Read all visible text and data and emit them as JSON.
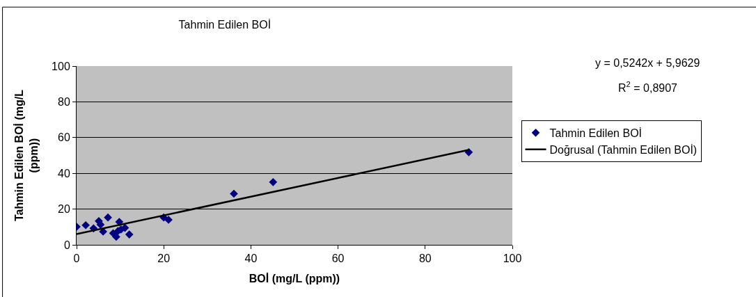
{
  "chart_data": {
    "type": "scatter",
    "title": "Tahmin Edilen BOİ",
    "xlabel": "BOİ (mg/L (ppm))",
    "ylabel": "Tahmin Edilen BOİ (mg/L (ppm))",
    "xlim": [
      0,
      100
    ],
    "xticks": [
      0,
      20,
      40,
      60,
      80,
      100
    ],
    "ylim": [
      0,
      100
    ],
    "yticks": [
      0,
      20,
      40,
      60,
      80,
      100
    ],
    "grid": "y",
    "legend": "right",
    "marker": "diamond",
    "annotations": [
      "y = 0,5242x + 5,9629",
      "R$^{2}$ = 0,8907"
    ],
    "series": [
      {
        "name": "Tahmin Edilen BOİ",
        "color": "#000080",
        "x": [
          0,
          2.1,
          3.9,
          5.1,
          5.5,
          6.1,
          7.2,
          8.4,
          9.1,
          9.5,
          9.8,
          10.2,
          11.1,
          12.1,
          20,
          21.1,
          36.1,
          45.1,
          90
        ],
        "values": [
          10.1,
          11,
          9.2,
          13.3,
          11.3,
          7.4,
          15.3,
          6.5,
          4.5,
          7.7,
          12.8,
          8.6,
          9.5,
          5.8,
          15.3,
          14,
          28.6,
          35.1,
          51.8
        ]
      },
      {
        "name": "Doğrusal (Tahmin Edilen BOİ)",
        "type": "line",
        "color": "#000000",
        "line_style": "solid",
        "marker": "none",
        "x": [
          0,
          90
        ],
        "values": [
          6.0,
          53.1
        ]
      }
    ]
  }
}
